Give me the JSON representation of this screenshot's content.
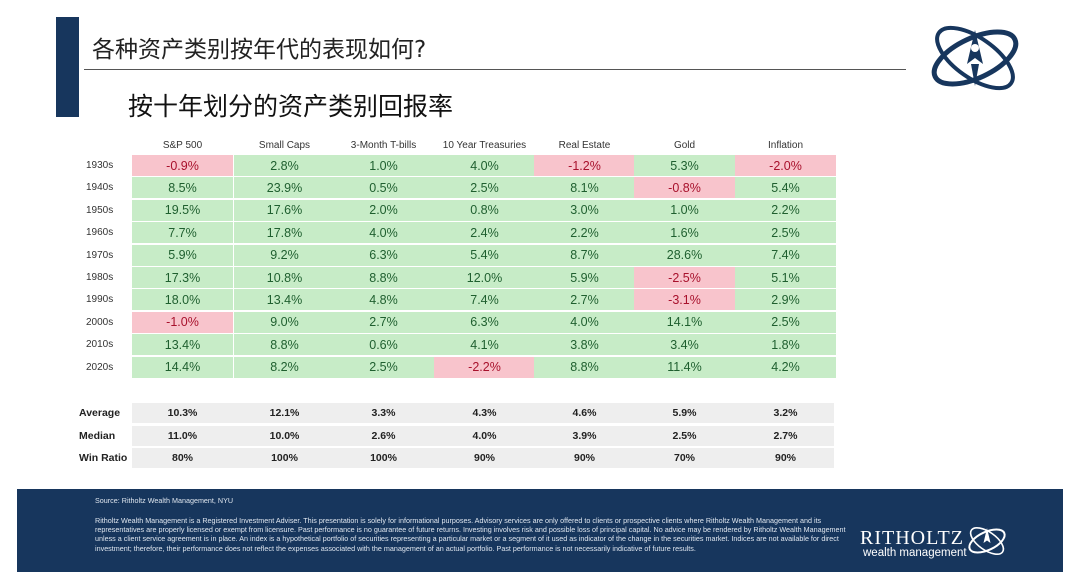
{
  "header": {
    "title": "各种资产类别按年代的表现如何?",
    "subtitle": "按十年划分的资产类别回报率"
  },
  "colors": {
    "accent": "#17365d",
    "positive_fill": "#c7ecc7",
    "negative_fill": "#f8c4cc",
    "negative_text": "#a8112c",
    "positive_text": "#1f5f2f"
  },
  "chart_data": {
    "type": "table",
    "title": "按十年划分的资产类别回报率",
    "columns": [
      "S&P 500",
      "Small Caps",
      "3-Month T-bills",
      "10 Year Treasuries",
      "Real Estate",
      "Gold",
      "Inflation"
    ],
    "rows": [
      {
        "label": "1930s",
        "values": [
          "-0.9%",
          "2.8%",
          "1.0%",
          "4.0%",
          "-1.2%",
          "5.3%",
          "-2.0%"
        ]
      },
      {
        "label": "1940s",
        "values": [
          "8.5%",
          "23.9%",
          "0.5%",
          "2.5%",
          "8.1%",
          "-0.8%",
          "5.4%"
        ]
      },
      {
        "label": "1950s",
        "values": [
          "19.5%",
          "17.6%",
          "2.0%",
          "0.8%",
          "3.0%",
          "1.0%",
          "2.2%"
        ]
      },
      {
        "label": "1960s",
        "values": [
          "7.7%",
          "17.8%",
          "4.0%",
          "2.4%",
          "2.2%",
          "1.6%",
          "2.5%"
        ]
      },
      {
        "label": "1970s",
        "values": [
          "5.9%",
          "9.2%",
          "6.3%",
          "5.4%",
          "8.7%",
          "28.6%",
          "7.4%"
        ]
      },
      {
        "label": "1980s",
        "values": [
          "17.3%",
          "10.8%",
          "8.8%",
          "12.0%",
          "5.9%",
          "-2.5%",
          "5.1%"
        ]
      },
      {
        "label": "1990s",
        "values": [
          "18.0%",
          "13.4%",
          "4.8%",
          "7.4%",
          "2.7%",
          "-3.1%",
          "2.9%"
        ]
      },
      {
        "label": "2000s",
        "values": [
          "-1.0%",
          "9.0%",
          "2.7%",
          "6.3%",
          "4.0%",
          "14.1%",
          "2.5%"
        ]
      },
      {
        "label": "2010s",
        "values": [
          "13.4%",
          "8.8%",
          "0.6%",
          "4.1%",
          "3.8%",
          "3.4%",
          "1.8%"
        ]
      },
      {
        "label": "2020s",
        "values": [
          "14.4%",
          "8.2%",
          "2.5%",
          "-2.2%",
          "8.8%",
          "11.4%",
          "4.2%"
        ]
      }
    ],
    "summary": [
      {
        "label": "Average",
        "values": [
          "10.3%",
          "12.1%",
          "3.3%",
          "4.3%",
          "4.6%",
          "5.9%",
          "3.2%"
        ]
      },
      {
        "label": "Median",
        "values": [
          "11.0%",
          "10.0%",
          "2.6%",
          "4.0%",
          "3.9%",
          "2.5%",
          "2.7%"
        ]
      },
      {
        "label": "Win Ratio",
        "values": [
          "80%",
          "100%",
          "100%",
          "90%",
          "90%",
          "70%",
          "90%"
        ]
      }
    ]
  },
  "footer": {
    "source": "Source: Ritholtz Wealth Management, NYU",
    "disclaimer": "Ritholtz Wealth Management is a Registered Investment Adviser. This presentation is solely for informational purposes. Advisory services are only offered to clients or prospective clients where Ritholtz Wealth Management and its representatives are properly licensed or exempt from licensure. Past performance is no guarantee of future returns. Investing involves risk and possible loss of principal capital. No advice may be rendered by Ritholtz Wealth Management unless a client service agreement is in place. An index is a hypothetical portfolio of securities representing a particular market or a segment of it used as indicator of the change in the securities market. Indices are not available for direct investment; therefore, their performance does not reflect the expenses associated with the management of an actual portfolio. Past performance is not necessarily indicative of future results.",
    "brand": "RITHOLTZ",
    "brand_sub": "wealth management"
  }
}
